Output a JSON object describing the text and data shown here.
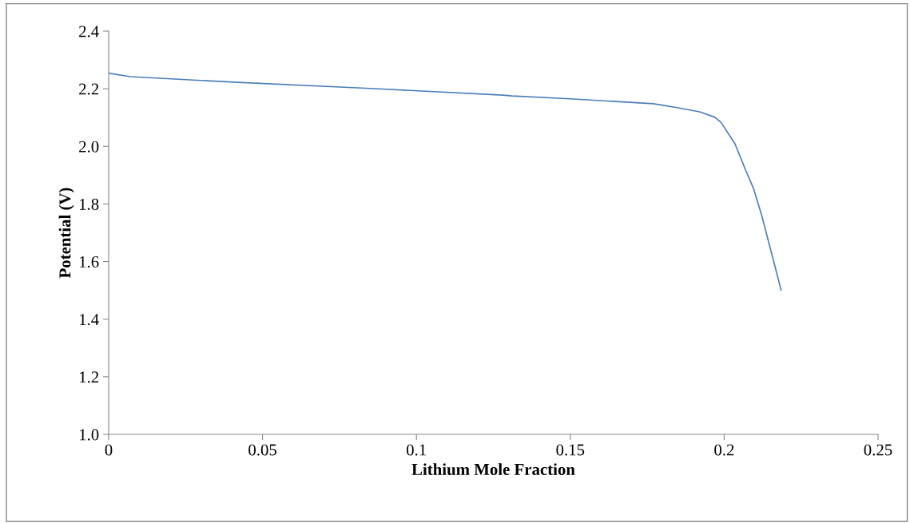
{
  "chart_data": {
    "type": "line",
    "xlabel": "Lithium Mole Fraction",
    "ylabel": "Potential (V)",
    "series": [
      {
        "color": "#4a7ebb",
        "x": [
          0,
          0.007,
          0.042,
          0.085,
          0.128,
          0.131,
          0.15,
          0.177,
          0.185,
          0.192,
          0.197,
          0.199,
          0.2035,
          0.207,
          0.2096,
          0.2122,
          0.2156,
          0.2185
        ],
        "values": [
          2.254,
          2.242,
          2.222,
          2.201,
          2.178,
          2.175,
          2.165,
          2.148,
          2.134,
          2.12,
          2.101,
          2.083,
          2.009,
          1.917,
          1.852,
          1.76,
          1.621,
          1.501
        ]
      }
    ],
    "xlim": [
      0,
      0.25
    ],
    "xticks": [
      0,
      0.05,
      0.1,
      0.15,
      0.2,
      0.25
    ],
    "ylim": [
      1.0,
      2.4
    ],
    "yticks": [
      {
        "value": 1.0,
        "label": "1.0"
      },
      {
        "value": 1.2,
        "label": "1.2"
      },
      {
        "value": 1.4,
        "label": "1.4"
      },
      {
        "value": 1.6,
        "label": "1.6"
      },
      {
        "value": 1.8,
        "label": "1.8"
      },
      {
        "value": 2.0,
        "label": "2.0"
      },
      {
        "value": 2.2,
        "label": "2.2"
      },
      {
        "value": 2.4,
        "label": "2.4"
      }
    ],
    "grid": false,
    "legend": false,
    "marker": "none",
    "line_style": "solid"
  }
}
